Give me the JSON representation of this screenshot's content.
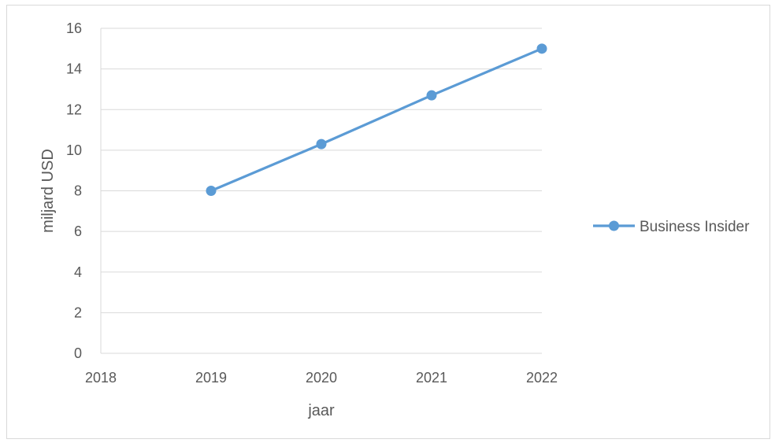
{
  "chart_data": {
    "type": "line",
    "x": [
      2019,
      2020,
      2021,
      2022
    ],
    "series": [
      {
        "name": "Business Insider",
        "values": [
          8,
          10.3,
          12.7,
          15
        ],
        "color": "#5b9bd5"
      }
    ],
    "xlabel": "jaar",
    "ylabel": "miljard USD",
    "xlim": [
      2018,
      2022
    ],
    "ylim": [
      0,
      16
    ],
    "xticks": [
      "2018",
      "2019",
      "2020",
      "2021",
      "2022"
    ],
    "yticks": [
      "0",
      "2",
      "4",
      "6",
      "8",
      "10",
      "12",
      "14",
      "16"
    ],
    "grid": "horizontal",
    "legend_position": "right"
  }
}
